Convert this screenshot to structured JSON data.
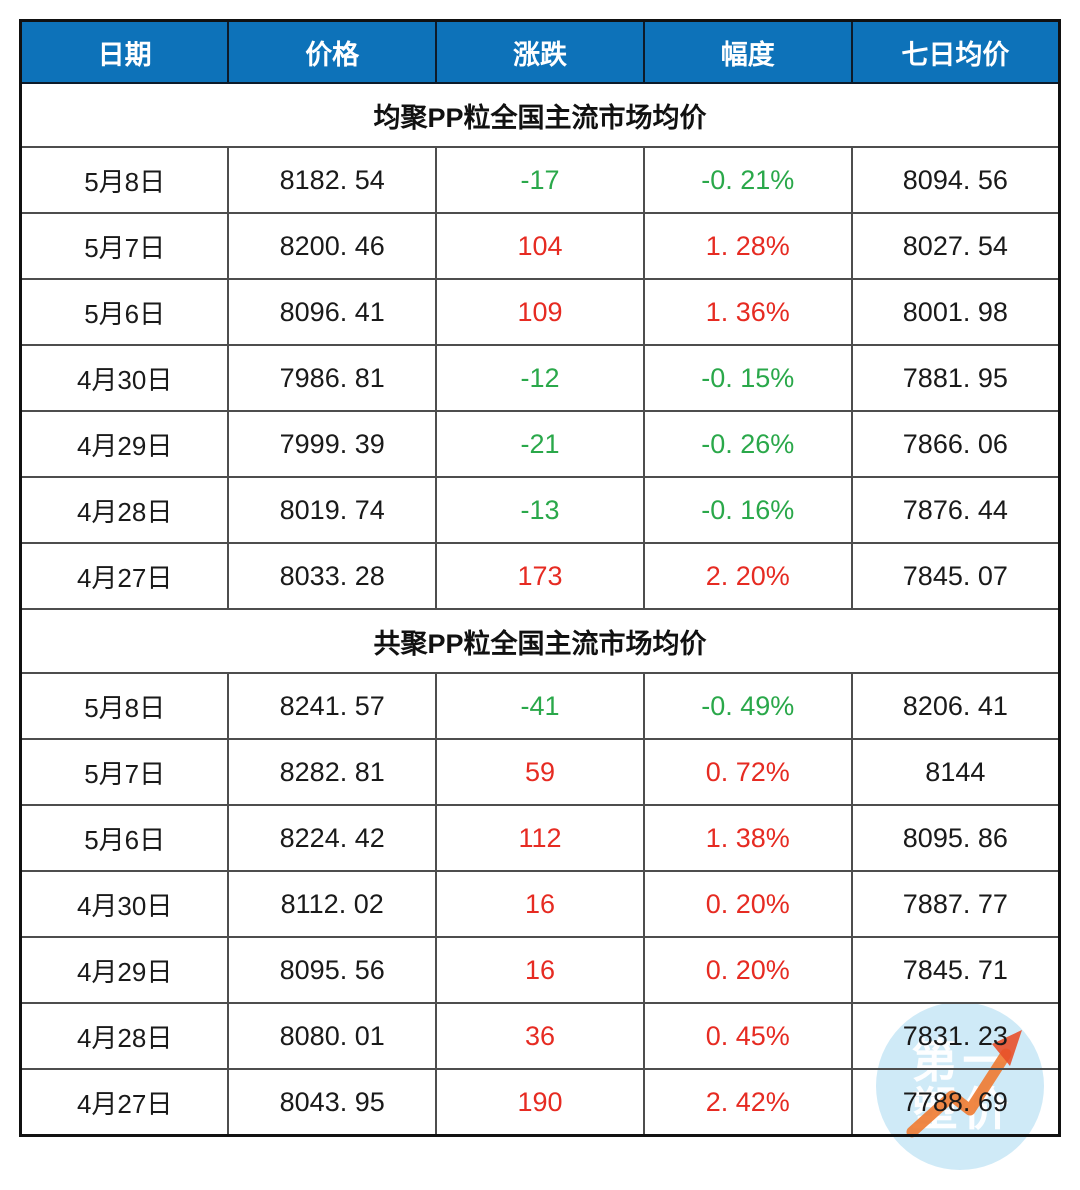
{
  "colors": {
    "header_bg": "#0d72b9",
    "header_text": "#ffffff",
    "up_red": "#e62b22",
    "down_green": "#2aa84a",
    "text": "#1a1a1a",
    "grid_line": "#4d4d4d",
    "outer_border": "#111111",
    "watermark_circle": "#cfeaf7",
    "watermark_text": "#ffffff",
    "watermark_arrow": "#ee7a30"
  },
  "watermark": {
    "line1": "第一",
    "line2": "塑价"
  },
  "chart_data": {
    "type": "table",
    "columns": [
      "日期",
      "价格",
      "涨跌",
      "幅度",
      "七日均价"
    ],
    "sections": [
      {
        "title": "均聚PP粒全国主流市场均价",
        "rows": [
          {
            "date": "5月8日",
            "price": "8182. 54",
            "change": "-17",
            "rate": "-0. 21%",
            "avg7": "8094. 56"
          },
          {
            "date": "5月7日",
            "price": "8200. 46",
            "change": "104",
            "rate": "1. 28%",
            "avg7": "8027. 54"
          },
          {
            "date": "5月6日",
            "price": "8096. 41",
            "change": "109",
            "rate": "1. 36%",
            "avg7": "8001. 98"
          },
          {
            "date": "4月30日",
            "price": "7986. 81",
            "change": "-12",
            "rate": "-0. 15%",
            "avg7": "7881. 95"
          },
          {
            "date": "4月29日",
            "price": "7999. 39",
            "change": "-21",
            "rate": "-0. 26%",
            "avg7": "7866. 06"
          },
          {
            "date": "4月28日",
            "price": "8019. 74",
            "change": "-13",
            "rate": "-0. 16%",
            "avg7": "7876. 44"
          },
          {
            "date": "4月27日",
            "price": "8033. 28",
            "change": "173",
            "rate": "2. 20%",
            "avg7": "7845. 07"
          }
        ]
      },
      {
        "title": "共聚PP粒全国主流市场均价",
        "rows": [
          {
            "date": "5月8日",
            "price": "8241. 57",
            "change": "-41",
            "rate": "-0. 49%",
            "avg7": "8206. 41"
          },
          {
            "date": "5月7日",
            "price": "8282. 81",
            "change": "59",
            "rate": "0. 72%",
            "avg7": "8144"
          },
          {
            "date": "5月6日",
            "price": "8224. 42",
            "change": "112",
            "rate": "1. 38%",
            "avg7": "8095. 86"
          },
          {
            "date": "4月30日",
            "price": "8112. 02",
            "change": "16",
            "rate": "0. 20%",
            "avg7": "7887. 77"
          },
          {
            "date": "4月29日",
            "price": "8095. 56",
            "change": "16",
            "rate": "0. 20%",
            "avg7": "7845. 71"
          },
          {
            "date": "4月28日",
            "price": "8080. 01",
            "change": "36",
            "rate": "0. 45%",
            "avg7": "7831. 23"
          },
          {
            "date": "4月27日",
            "price": "8043. 95",
            "change": "190",
            "rate": "2. 42%",
            "avg7": "7788. 69"
          }
        ]
      }
    ]
  }
}
